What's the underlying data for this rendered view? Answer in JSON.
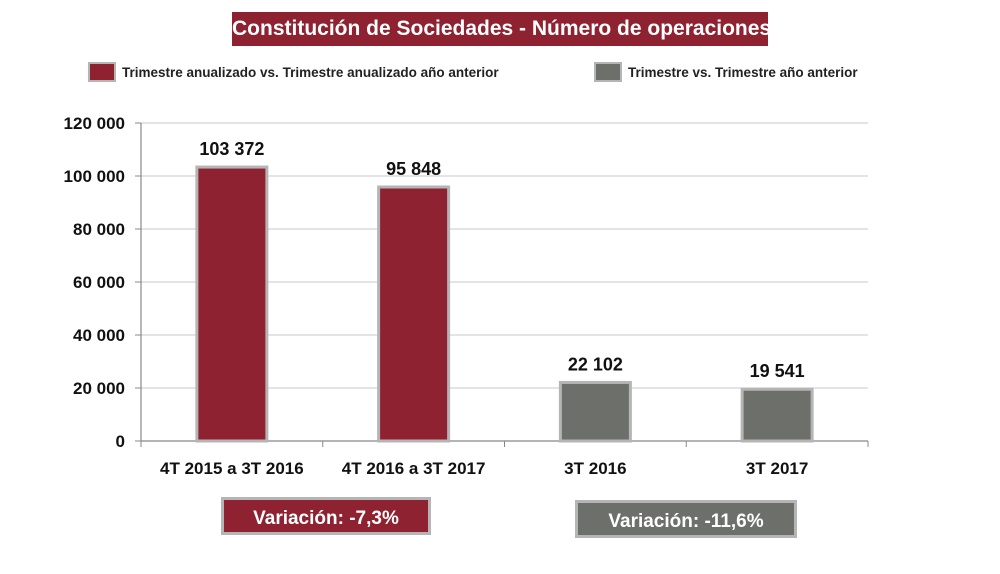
{
  "title": "Constitución de Sociedades - Número de operaciones",
  "legend": [
    {
      "label": "Trimestre anualizado vs. Trimestre anualizado año anterior",
      "color": "#8e2230"
    },
    {
      "label": "Trimestre vs. Trimestre año anterior",
      "color": "#6d6f6b"
    }
  ],
  "variations": [
    {
      "text": "Variación:  -7,3%",
      "color": "#8e2230"
    },
    {
      "text": "Variación: -11,6%",
      "color": "#6d6f6b"
    }
  ],
  "chart_data": {
    "type": "bar",
    "title": "Constitución de Sociedades - Número de operaciones",
    "categories": [
      "4T 2015 a 3T 2016",
      "4T 2016 a 3T 2017",
      "3T 2016",
      "3T 2017"
    ],
    "values": [
      103372,
      95848,
      22102,
      19541
    ],
    "value_labels": [
      "103 372",
      "95 848",
      "22 102",
      "19 541"
    ],
    "series_of_category": [
      0,
      0,
      1,
      1
    ],
    "ylim": [
      0,
      120000
    ],
    "yticks": [
      0,
      20000,
      40000,
      60000,
      80000,
      100000,
      120000
    ],
    "ytick_labels": [
      "0",
      "20 000",
      "40 000",
      "60 000",
      "80 000",
      "100 000",
      "120 000"
    ],
    "grid": true,
    "xlabel": "",
    "ylabel": "",
    "bar_border_color": "#b5b5b5"
  }
}
